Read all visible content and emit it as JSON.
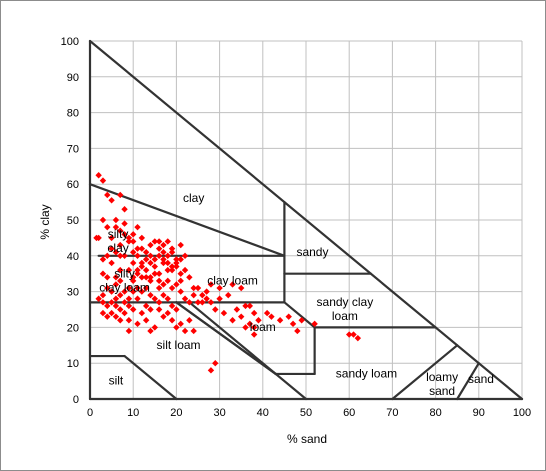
{
  "chart_data": {
    "type": "scatter",
    "xlabel": "% sand",
    "ylabel": "% clay",
    "xlim": [
      0,
      100
    ],
    "ylim": [
      0,
      100
    ],
    "x_ticks": [
      "0",
      "10",
      "20",
      "30",
      "40",
      "50",
      "60",
      "70",
      "80",
      "90",
      "100"
    ],
    "y_ticks": [
      "0",
      "10",
      "20",
      "30",
      "40",
      "50",
      "60",
      "70",
      "80",
      "90",
      "100"
    ],
    "grid": true,
    "legend": "none",
    "colors": {
      "points": "#ff0000",
      "lines": "#333333",
      "grid": "#c0c0c0"
    },
    "texture_classes": [
      {
        "lines": [
          "clay"
        ],
        "at": [
          24,
          55
        ]
      },
      {
        "lines": [
          "silty",
          "clay"
        ],
        "at": [
          6.5,
          45
        ]
      },
      {
        "lines": [
          "silty",
          "clay loam"
        ],
        "at": [
          8,
          34
        ]
      },
      {
        "lines": [
          "sandy"
        ],
        "at": [
          51.5,
          40
        ]
      },
      {
        "lines": [
          "clay loam"
        ],
        "at": [
          33,
          32
        ]
      },
      {
        "lines": [
          "sandy clay",
          "loam"
        ],
        "at": [
          59,
          26
        ]
      },
      {
        "lines": [
          "loam"
        ],
        "at": [
          40,
          19
        ]
      },
      {
        "lines": [
          "silt loam"
        ],
        "at": [
          20.5,
          14
        ]
      },
      {
        "lines": [
          "silt"
        ],
        "at": [
          6,
          4
        ]
      },
      {
        "lines": [
          "sandy loam"
        ],
        "at": [
          64,
          6
        ]
      },
      {
        "lines": [
          "loamy",
          "sand"
        ],
        "at": [
          81.5,
          5
        ]
      },
      {
        "lines": [
          "sand"
        ],
        "at": [
          90.5,
          4.5
        ]
      }
    ],
    "points": [
      [
        2,
        62.5
      ],
      [
        3,
        61
      ],
      [
        4,
        57
      ],
      [
        5,
        55.5
      ],
      [
        7,
        57
      ],
      [
        8,
        53
      ],
      [
        8,
        49
      ],
      [
        6,
        48
      ],
      [
        10,
        46
      ],
      [
        11,
        48
      ],
      [
        12,
        45
      ],
      [
        9,
        44
      ],
      [
        7,
        43
      ],
      [
        14,
        43
      ],
      [
        15,
        44
      ],
      [
        16,
        42
      ],
      [
        13,
        41
      ],
      [
        11,
        40
      ],
      [
        17,
        41
      ],
      [
        18,
        44
      ],
      [
        19,
        41
      ],
      [
        21,
        43
      ],
      [
        20,
        39
      ],
      [
        17,
        38
      ],
      [
        15,
        37
      ],
      [
        14,
        38
      ],
      [
        12,
        37
      ],
      [
        10,
        38
      ],
      [
        9,
        36
      ],
      [
        8,
        40
      ],
      [
        6,
        41
      ],
      [
        3,
        39
      ],
      [
        2,
        45
      ],
      [
        1.5,
        45
      ],
      [
        5,
        38
      ],
      [
        7,
        36
      ],
      [
        11,
        35
      ],
      [
        13,
        34
      ],
      [
        15,
        35
      ],
      [
        16,
        35
      ],
      [
        18,
        36
      ],
      [
        20,
        37
      ],
      [
        22,
        36
      ],
      [
        21,
        33
      ],
      [
        23,
        34
      ],
      [
        24,
        31
      ],
      [
        25,
        31
      ],
      [
        27,
        30
      ],
      [
        28,
        32
      ],
      [
        30,
        31
      ],
      [
        33,
        32
      ],
      [
        35,
        31
      ],
      [
        32,
        29
      ],
      [
        30,
        28
      ],
      [
        28,
        27
      ],
      [
        26,
        27
      ],
      [
        29,
        25
      ],
      [
        31,
        24
      ],
      [
        33,
        22
      ],
      [
        34,
        25
      ],
      [
        36,
        26
      ],
      [
        35,
        23
      ],
      [
        37,
        26
      ],
      [
        38,
        24
      ],
      [
        37,
        21
      ],
      [
        38,
        20
      ],
      [
        39,
        22
      ],
      [
        41,
        24
      ],
      [
        44,
        22
      ],
      [
        42,
        23
      ],
      [
        46,
        23
      ],
      [
        47,
        21
      ],
      [
        49,
        22
      ],
      [
        52,
        21
      ],
      [
        48,
        19
      ],
      [
        36,
        20
      ],
      [
        38,
        18
      ],
      [
        10,
        33
      ],
      [
        9,
        31
      ],
      [
        8,
        30
      ],
      [
        7,
        29
      ],
      [
        6,
        28
      ],
      [
        5,
        27
      ],
      [
        5,
        30
      ],
      [
        4,
        31
      ],
      [
        6,
        32
      ],
      [
        7,
        33
      ],
      [
        11,
        28
      ],
      [
        12,
        30
      ],
      [
        13,
        31
      ],
      [
        14,
        29
      ],
      [
        15,
        28
      ],
      [
        16,
        27
      ],
      [
        17,
        29
      ],
      [
        18,
        28
      ],
      [
        19,
        26
      ],
      [
        20,
        25
      ],
      [
        18,
        24
      ],
      [
        17,
        23
      ],
      [
        16,
        25
      ],
      [
        14,
        25
      ],
      [
        13,
        26
      ],
      [
        12,
        24
      ],
      [
        10,
        25
      ],
      [
        9,
        26
      ],
      [
        8,
        24
      ],
      [
        7,
        25
      ],
      [
        6,
        26
      ],
      [
        5,
        24
      ],
      [
        4,
        26
      ],
      [
        3,
        27
      ],
      [
        2,
        28
      ],
      [
        3,
        29
      ],
      [
        7,
        22
      ],
      [
        9,
        22
      ],
      [
        11,
        21
      ],
      [
        13,
        22
      ],
      [
        15,
        20
      ],
      [
        19,
        22
      ],
      [
        21,
        21
      ],
      [
        23,
        22
      ],
      [
        24,
        19
      ],
      [
        14,
        19
      ],
      [
        9,
        19
      ],
      [
        20,
        20
      ],
      [
        22,
        19
      ],
      [
        24,
        29
      ],
      [
        23,
        27
      ],
      [
        22,
        28
      ],
      [
        25,
        27
      ],
      [
        26,
        29
      ],
      [
        27,
        28
      ],
      [
        20,
        32
      ],
      [
        21,
        35
      ],
      [
        18,
        33
      ],
      [
        16,
        31
      ],
      [
        14,
        33
      ],
      [
        12,
        34
      ],
      [
        11,
        31
      ],
      [
        10,
        30
      ],
      [
        9,
        28
      ],
      [
        8,
        27
      ],
      [
        12,
        38
      ],
      [
        13,
        39
      ],
      [
        14,
        40
      ],
      [
        15,
        39
      ],
      [
        16,
        40
      ],
      [
        17,
        39
      ],
      [
        18,
        38
      ],
      [
        19,
        36
      ],
      [
        20,
        38
      ],
      [
        17,
        43
      ],
      [
        16,
        44
      ],
      [
        18,
        40
      ],
      [
        19,
        37
      ],
      [
        13,
        36
      ],
      [
        12,
        42
      ],
      [
        10,
        44
      ],
      [
        9,
        45
      ],
      [
        8,
        46
      ],
      [
        11,
        42
      ],
      [
        10,
        41
      ],
      [
        21,
        39
      ],
      [
        22,
        40
      ],
      [
        19,
        42
      ],
      [
        6,
        50
      ],
      [
        7,
        47
      ],
      [
        5,
        45
      ],
      [
        4,
        48
      ],
      [
        3,
        50
      ],
      [
        7,
        40
      ],
      [
        5,
        42
      ],
      [
        4,
        40
      ],
      [
        3,
        35
      ],
      [
        4,
        34
      ],
      [
        6,
        34
      ],
      [
        10,
        34
      ],
      [
        11,
        36
      ],
      [
        14,
        34
      ],
      [
        16,
        33
      ],
      [
        17,
        32
      ],
      [
        19,
        31
      ],
      [
        21,
        30
      ],
      [
        6,
        23
      ],
      [
        4,
        23
      ],
      [
        3,
        24
      ],
      [
        28,
        8
      ],
      [
        29,
        10
      ],
      [
        61,
        18
      ],
      [
        60,
        18
      ],
      [
        62,
        17
      ]
    ]
  }
}
